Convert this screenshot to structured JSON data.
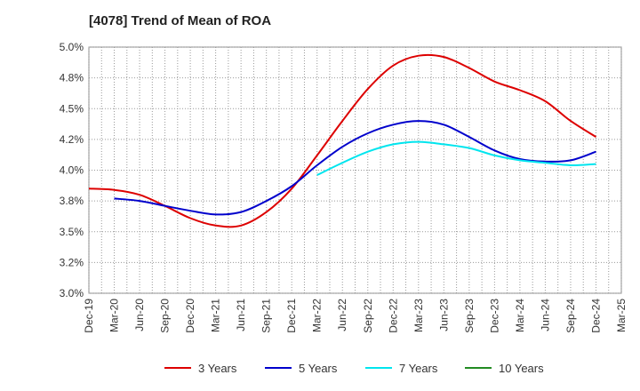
{
  "chart_data": {
    "type": "line",
    "title": "[4078]  Trend of Mean of ROA",
    "xlabel": "",
    "ylabel": "",
    "categories": [
      "Dec-19",
      "Mar-20",
      "Jun-20",
      "Sep-20",
      "Dec-20",
      "Mar-21",
      "Jun-21",
      "Sep-21",
      "Dec-21",
      "Mar-22",
      "Jun-22",
      "Sep-22",
      "Dec-22",
      "Mar-23",
      "Jun-23",
      "Sep-23",
      "Dec-23",
      "Mar-24",
      "Jun-24",
      "Sep-24",
      "Dec-24",
      "Mar-25"
    ],
    "y_ticks": [
      "3.0%",
      "3.2%",
      "3.5%",
      "3.8%",
      "4.0%",
      "4.2%",
      "4.5%",
      "4.8%",
      "5.0%"
    ],
    "ylim": [
      3.0,
      5.0
    ],
    "grid": true,
    "legend_position": "bottom",
    "series": [
      {
        "name": "3 Years",
        "color": "#dd0000",
        "values": [
          3.85,
          3.84,
          3.8,
          3.71,
          3.61,
          3.55,
          3.55,
          3.66,
          3.85,
          4.12,
          4.4,
          4.66,
          4.85,
          4.93,
          4.92,
          4.83,
          4.72,
          4.65,
          4.56,
          4.4,
          4.27,
          null
        ]
      },
      {
        "name": "5 Years",
        "color": "#0000cc",
        "values": [
          null,
          3.77,
          3.75,
          3.71,
          3.67,
          3.64,
          3.66,
          3.75,
          3.87,
          4.04,
          4.19,
          4.3,
          4.37,
          4.4,
          4.37,
          4.27,
          4.16,
          4.09,
          4.07,
          4.08,
          4.15,
          null
        ]
      },
      {
        "name": "7 Years",
        "color": "#00e5ee",
        "values": [
          null,
          null,
          null,
          null,
          null,
          null,
          null,
          null,
          null,
          3.96,
          4.06,
          4.15,
          4.21,
          4.23,
          4.21,
          4.18,
          4.12,
          4.08,
          4.06,
          4.04,
          4.05,
          null
        ]
      },
      {
        "name": "10 Years",
        "color": "#228b22",
        "values": [
          null,
          null,
          null,
          null,
          null,
          null,
          null,
          null,
          null,
          null,
          null,
          null,
          null,
          null,
          null,
          null,
          null,
          null,
          null,
          null,
          null,
          null
        ]
      }
    ]
  }
}
